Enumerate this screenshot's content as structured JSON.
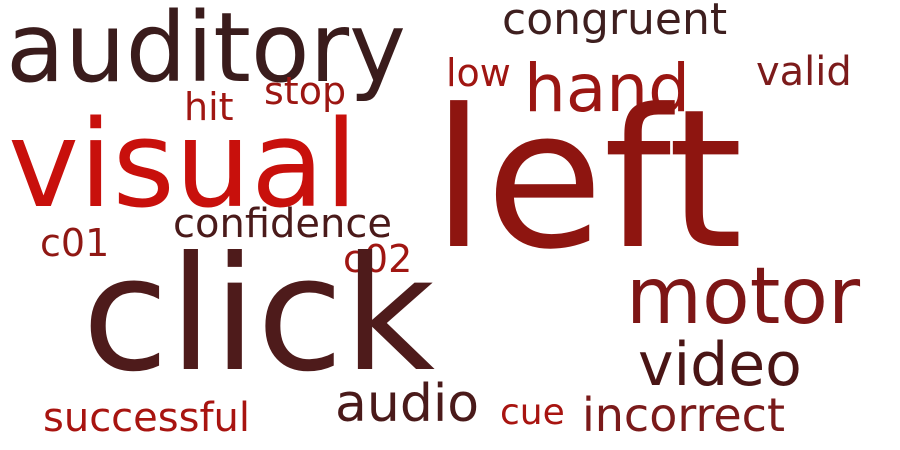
{
  "words": {
    "left": {
      "text": "left",
      "color": "#8e1510"
    },
    "click": {
      "text": "click",
      "color": "#4e1b1b"
    },
    "visual": {
      "text": "visual",
      "color": "#c8100c"
    },
    "auditory": {
      "text": "auditory",
      "color": "#3a1c1c"
    },
    "motor": {
      "text": "motor",
      "color": "#7d1616"
    },
    "hand": {
      "text": "hand",
      "color": "#9a1612"
    },
    "video": {
      "text": "video",
      "color": "#4a1515"
    },
    "audio": {
      "text": "audio",
      "color": "#4a1a1a"
    },
    "incorrect": {
      "text": "incorrect",
      "color": "#7a1a1a"
    },
    "congruent": {
      "text": "congruent",
      "color": "#3e1f1f"
    },
    "confidence": {
      "text": "confidence",
      "color": "#4a1a1a"
    },
    "successful": {
      "text": "successful",
      "color": "#a81410"
    },
    "valid": {
      "text": "valid",
      "color": "#7c1b1b"
    },
    "stop": {
      "text": "stop",
      "color": "#9c1612"
    },
    "low": {
      "text": "low",
      "color": "#a01612"
    },
    "hit": {
      "text": "hit",
      "color": "#a01612"
    },
    "c01": {
      "text": "c01",
      "color": "#901814"
    },
    "c02": {
      "text": "c02",
      "color": "#a01612"
    },
    "cue": {
      "text": "cue",
      "color": "#a81410"
    }
  }
}
